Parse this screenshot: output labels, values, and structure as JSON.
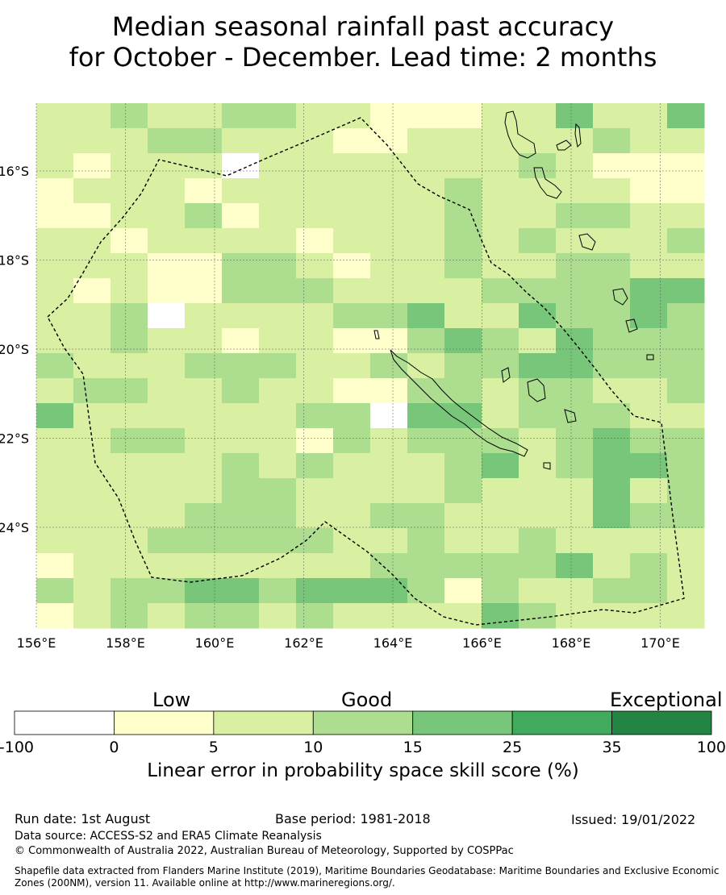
{
  "title": {
    "line1": "Median seasonal rainfall past accuracy",
    "line2": "for October - December. Lead time: 2 months"
  },
  "map": {
    "lon_range": [
      156,
      171.5
    ],
    "lat_range": [
      -26.6,
      -14.6
    ],
    "lon_ticks": [
      "156°E",
      "158°E",
      "160°E",
      "162°E",
      "164°E",
      "166°E",
      "168°E",
      "170°E"
    ],
    "lat_ticks": [
      "16°S",
      "18°S",
      "20°S",
      "22°S",
      "24°S"
    ],
    "grid": "dashed",
    "legend_placement": "bottom"
  },
  "colorbar": {
    "categories": [
      "Low",
      "Good",
      "Exceptional"
    ],
    "ticks": [
      "-100",
      "0",
      "5",
      "10",
      "15",
      "25",
      "35",
      "100"
    ],
    "colors": [
      "#ffffff",
      "#ffffcc",
      "#d9f0a3",
      "#addd8e",
      "#78c679",
      "#41ab5d",
      "#238443"
    ],
    "label": "Linear error in probability space skill score (%)"
  },
  "footer": {
    "run_date": "Run date: 1st August",
    "base_period": "Base period: 1981-2018",
    "issued": "Issued: 19/01/2022",
    "data_source": "Data source: ACCESS-S2 and ERA5 Climate Reanalysis",
    "copyright": "© Commonwealth of Australia 2022, Australian Bureau of Meteorology, Supported by COSPPac",
    "shapefile": "Shapefile data extracted from Flanders Marine Institute (2019), Maritime Boundaries Geodatabase: Maritime Boundaries and Exclusive Economic Zones (200NM), version 11. Available online at http://www.marineregions.org/."
  }
}
